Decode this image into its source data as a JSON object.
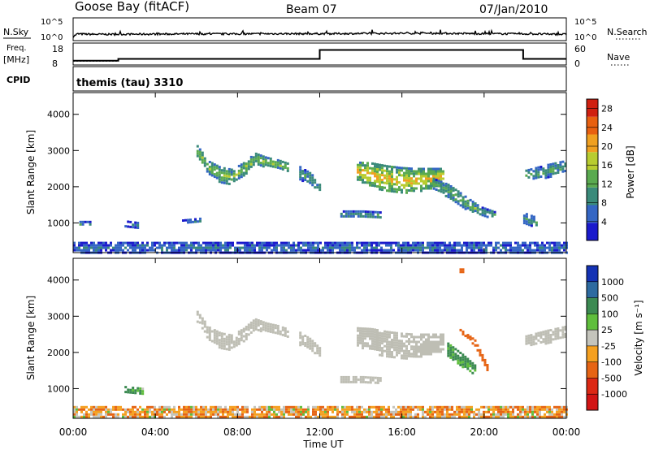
{
  "header": {
    "site": "Goose Bay (fitACF)",
    "beam": "Beam 07",
    "date": "07/Jan/2010"
  },
  "noise_panel": {
    "left_label": "N.Sky",
    "right_label": "N.Search",
    "left_ticks": [
      "10^5",
      "10^0"
    ],
    "right_ticks": [
      "10^5",
      "10^0"
    ]
  },
  "freq_panel": {
    "left_label_top": "Freq.",
    "left_label_unit": "[MHz]",
    "left_ticks": [
      "18",
      "8"
    ],
    "right_label": "Nave",
    "right_ticks": [
      "60",
      "0"
    ]
  },
  "cpid_panel": {
    "label": "CPID",
    "text": "themis (tau) 3310"
  },
  "colors": {
    "power": [
      "#1a1acc",
      "#3466c4",
      "#3a8a7a",
      "#5aaa50",
      "#b8cc30",
      "#f0a020",
      "#e86010",
      "#d02010"
    ],
    "velocity": [
      "#1432b4",
      "#2d6aa0",
      "#3c8a52",
      "#5fbe3c",
      "#c4c4bc",
      "#f5a020",
      "#e66414",
      "#dc2814",
      "#d21414"
    ],
    "ground_scatter": "#bebeb4"
  },
  "chart_data": [
    {
      "type": "line",
      "title": "N.Sky / N.Search",
      "x_unit": "UT hours",
      "ylim_log10": [
        0,
        5
      ],
      "series": [
        {
          "name": "N.Sky",
          "x": [
            0,
            0.2,
            1,
            2,
            4,
            6,
            8,
            10,
            12,
            14,
            16,
            18,
            20,
            22,
            24
          ],
          "y_log10": [
            0.6,
            1.3,
            1.2,
            1.2,
            1.25,
            1.3,
            1.3,
            1.35,
            1.35,
            1.4,
            1.45,
            1.45,
            1.35,
            1.3,
            1.2
          ]
        }
      ]
    },
    {
      "type": "line",
      "title": "Freq. / Nave",
      "x_unit": "UT hours",
      "ylim": [
        8,
        18
      ],
      "ylim_right": [
        0,
        60
      ],
      "series": [
        {
          "name": "Freq.",
          "x": [
            0,
            2.2,
            2.2,
            12,
            12,
            21.9,
            21.9,
            24
          ],
          "y": [
            9.5,
            9.5,
            10.5,
            10.5,
            15.5,
            15.5,
            10.5,
            10.5
          ]
        }
      ]
    },
    {
      "type": "heatmap",
      "title": "Power",
      "xlabel": "Time UT",
      "ylabel": "Slant Range [km]",
      "x_ticks": [
        "00:00",
        "04:00",
        "08:00",
        "12:00",
        "16:00",
        "20:00",
        "00:00"
      ],
      "x_tick_hours": [
        0,
        4,
        8,
        12,
        16,
        20,
        24
      ],
      "y_ticks": [
        1000,
        2000,
        3000,
        4000
      ],
      "xlim": [
        0,
        24
      ],
      "ylim": [
        180,
        4600
      ],
      "colorbar": {
        "label": "Power [dB]",
        "ticks": [
          4,
          8,
          12,
          16,
          20,
          24,
          28
        ],
        "range": [
          0,
          30
        ]
      },
      "regions": [
        {
          "t0": 6.0,
          "t1": 10.5,
          "center": [
            3000,
            2550,
            2350,
            2300,
            2500,
            2800,
            2700,
            2650,
            2550
          ],
          "width": [
            300,
            350,
            420,
            400,
            360,
            300,
            260,
            220,
            200
          ],
          "value": 13
        },
        {
          "t0": 11.0,
          "t1": 12.0,
          "center": [
            2400,
            2250,
            2000
          ],
          "width": [
            350,
            300,
            250
          ],
          "value": 9
        },
        {
          "t0": 13.8,
          "t1": 18.0,
          "center": [
            2450,
            2350,
            2250,
            2200,
            2200,
            2250,
            2300
          ],
          "width": [
            500,
            650,
            700,
            700,
            650,
            550,
            450
          ],
          "value": 17
        },
        {
          "t0": 17.5,
          "t1": 20.5,
          "center": [
            2100,
            1900,
            1600,
            1350,
            1250
          ],
          "width": [
            300,
            350,
            350,
            250,
            150
          ],
          "value": 11
        },
        {
          "t0": 13.0,
          "t1": 15.0,
          "center": [
            1250,
            1250,
            1230
          ],
          "width": [
            200,
            200,
            180
          ],
          "value": 9
        },
        {
          "t0": 22.0,
          "t1": 24.0,
          "center": [
            2350,
            2450,
            2600
          ],
          "width": [
            250,
            350,
            300
          ],
          "value": 10
        },
        {
          "t0": 21.9,
          "t1": 22.5,
          "center": [
            1150,
            1050
          ],
          "width": [
            300,
            250
          ],
          "value": 9
        },
        {
          "t0": 0.3,
          "t1": 0.8,
          "center": [
            1000,
            1000
          ],
          "width": [
            120,
            120
          ],
          "value": 8
        },
        {
          "t0": 2.5,
          "t1": 3.2,
          "center": [
            1000,
            950
          ],
          "width": [
            150,
            150
          ],
          "value": 7
        },
        {
          "t0": 5.3,
          "t1": 6.2,
          "center": [
            1050,
            1100
          ],
          "width": [
            100,
            100
          ],
          "value": 8
        },
        {
          "t0": 0.0,
          "t1": 24.0,
          "center": [
            340,
            340
          ],
          "width": [
            280,
            280
          ],
          "value": 6
        }
      ]
    },
    {
      "type": "heatmap",
      "title": "Velocity",
      "xlabel": "Time UT",
      "ylabel": "Slant Range [km]",
      "x_ticks": [
        "00:00",
        "04:00",
        "08:00",
        "12:00",
        "16:00",
        "20:00",
        "00:00"
      ],
      "x_tick_hours": [
        0,
        4,
        8,
        12,
        16,
        20,
        24
      ],
      "y_ticks": [
        1000,
        2000,
        3000,
        4000
      ],
      "xlim": [
        0,
        24
      ],
      "ylim": [
        180,
        4600
      ],
      "colorbar": {
        "label": "Velocity [m s⁻¹]",
        "ticks": [
          "1000",
          "500",
          "100",
          "25",
          "-25",
          "-100",
          "-500",
          "-1000"
        ]
      },
      "regions": [
        {
          "t0": 6.0,
          "t1": 10.5,
          "center": [
            3000,
            2550,
            2350,
            2300,
            2500,
            2800,
            2700,
            2650,
            2550
          ],
          "width": [
            300,
            350,
            420,
            400,
            360,
            300,
            260,
            220,
            200
          ],
          "value": 0
        },
        {
          "t0": 11.0,
          "t1": 12.0,
          "center": [
            2400,
            2250,
            2000
          ],
          "width": [
            350,
            300,
            250
          ],
          "value": 0
        },
        {
          "t0": 13.8,
          "t1": 18.0,
          "center": [
            2450,
            2350,
            2250,
            2200,
            2200,
            2250,
            2300
          ],
          "width": [
            500,
            650,
            700,
            700,
            650,
            550,
            450
          ],
          "value": 0
        },
        {
          "t0": 18.2,
          "t1": 19.6,
          "center": [
            2100,
            1800,
            1500
          ],
          "width": [
            350,
            350,
            250
          ],
          "value": 150
        },
        {
          "t0": 18.8,
          "t1": 20.2,
          "center": [
            2600,
            2300,
            1500
          ],
          "width": [
            100,
            150,
            150
          ],
          "value": -200
        },
        {
          "t0": 22.0,
          "t1": 24.0,
          "center": [
            2350,
            2450,
            2600
          ],
          "width": [
            250,
            350,
            300
          ],
          "value": 0
        },
        {
          "t0": 13.0,
          "t1": 15.0,
          "center": [
            1250,
            1250,
            1230
          ],
          "width": [
            200,
            200,
            180
          ],
          "value": 0
        },
        {
          "t0": 0.0,
          "t1": 24.0,
          "center": [
            360,
            360
          ],
          "width": [
            320,
            320
          ],
          "value": -60
        },
        {
          "t0": 2.5,
          "t1": 3.4,
          "center": [
            1000,
            950
          ],
          "width": [
            150,
            150
          ],
          "value": 120
        },
        {
          "t0": 18.8,
          "t1": 19.0,
          "center": [
            4250,
            4250
          ],
          "width": [
            150,
            150
          ],
          "value": -200
        }
      ]
    }
  ]
}
